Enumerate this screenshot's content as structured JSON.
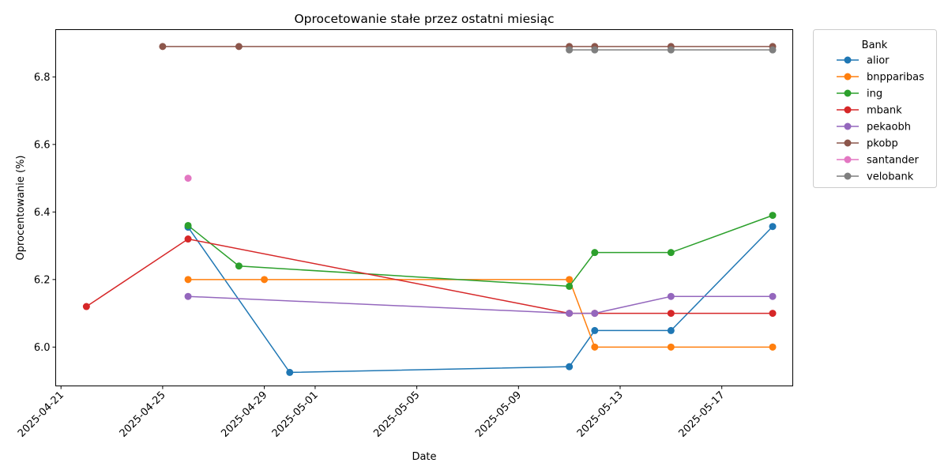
{
  "chart_data": {
    "type": "line",
    "title": "Oprocetowanie stałe przez ostatni miesiąc",
    "xlabel": "Date",
    "ylabel": "Oprocentowanie (%)",
    "xlim": [
      "2025-04-20T19:00",
      "2025-05-19T19:00"
    ],
    "ylim": [
      5.885,
      6.94
    ],
    "x_ticks": [
      "2025-04-21",
      "2025-04-25",
      "2025-04-29",
      "2025-05-01",
      "2025-05-05",
      "2025-05-09",
      "2025-05-13",
      "2025-05-17"
    ],
    "y_ticks": [
      6.0,
      6.2,
      6.4,
      6.6,
      6.8
    ],
    "y_tick_labels": [
      "6.0",
      "6.2",
      "6.4",
      "6.6",
      "6.8"
    ],
    "grid": false,
    "legend": {
      "title": "Bank",
      "position": "outside-top-right"
    },
    "series": [
      {
        "name": "alior",
        "color": "#1f77b4",
        "points": [
          [
            "2025-04-26",
            6.355
          ],
          [
            "2025-04-30",
            5.925
          ],
          [
            "2025-05-11",
            5.942
          ],
          [
            "2025-05-12",
            6.049
          ],
          [
            "2025-05-15",
            6.049
          ],
          [
            "2025-05-19",
            6.357
          ]
        ]
      },
      {
        "name": "bnpparibas",
        "color": "#ff7f0e",
        "points": [
          [
            "2025-04-26",
            6.2
          ],
          [
            "2025-04-29",
            6.2
          ],
          [
            "2025-05-11",
            6.2
          ],
          [
            "2025-05-12",
            6.0
          ],
          [
            "2025-05-15",
            6.0
          ],
          [
            "2025-05-19",
            6.0
          ]
        ]
      },
      {
        "name": "ing",
        "color": "#2ca02c",
        "points": [
          [
            "2025-04-26",
            6.36
          ],
          [
            "2025-04-28",
            6.24
          ],
          [
            "2025-05-11",
            6.18
          ],
          [
            "2025-05-12",
            6.28
          ],
          [
            "2025-05-15",
            6.28
          ],
          [
            "2025-05-19",
            6.39
          ]
        ]
      },
      {
        "name": "mbank",
        "color": "#d62728",
        "points": [
          [
            "2025-04-22",
            6.12
          ],
          [
            "2025-04-26",
            6.32
          ],
          [
            "2025-05-11",
            6.1
          ],
          [
            "2025-05-12",
            6.1
          ],
          [
            "2025-05-15",
            6.1
          ],
          [
            "2025-05-19",
            6.1
          ]
        ]
      },
      {
        "name": "pekaobh",
        "color": "#9467bd",
        "points": [
          [
            "2025-04-26",
            6.15
          ],
          [
            "2025-05-11",
            6.1
          ],
          [
            "2025-05-12",
            6.1
          ],
          [
            "2025-05-15",
            6.15
          ],
          [
            "2025-05-19",
            6.15
          ]
        ]
      },
      {
        "name": "pkobp",
        "color": "#8c564b",
        "points": [
          [
            "2025-04-25",
            6.89
          ],
          [
            "2025-04-28",
            6.89
          ],
          [
            "2025-05-11",
            6.89
          ],
          [
            "2025-05-12",
            6.89
          ],
          [
            "2025-05-15",
            6.89
          ],
          [
            "2025-05-19",
            6.89
          ]
        ]
      },
      {
        "name": "santander",
        "color": "#e377c2",
        "points": [
          [
            "2025-04-26",
            6.5
          ]
        ]
      },
      {
        "name": "velobank",
        "color": "#7f7f7f",
        "points": [
          [
            "2025-05-11",
            6.88
          ],
          [
            "2025-05-12",
            6.88
          ],
          [
            "2025-05-15",
            6.88
          ],
          [
            "2025-05-19",
            6.88
          ]
        ]
      }
    ]
  }
}
